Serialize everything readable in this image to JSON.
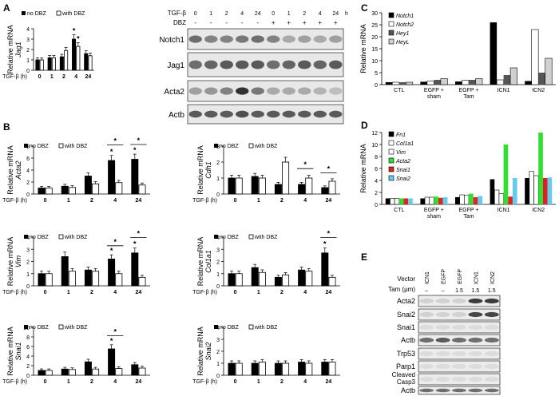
{
  "panels": {
    "A": "A",
    "B": "B",
    "C": "C",
    "D": "D",
    "E": "E"
  },
  "legend": {
    "no_dbz": "no DBZ",
    "with_dbz": "with DBZ"
  },
  "ylabel_prefix": "Relative mRNA",
  "tgf_axis": "TGF-β (h)",
  "tgf_times": [
    "0",
    "1",
    "2",
    "4",
    "24"
  ],
  "colors": {
    "black": "#000000",
    "white": "#ffffff",
    "dark_gray": "#555555",
    "light_gray": "#d0d0d0",
    "green": "#33dd33",
    "red": "#dd2222",
    "cyan": "#66ccee"
  },
  "blotA": {
    "tgf_label": "TGF-β",
    "dbz_label": "DBZ",
    "h_label": "h",
    "times": [
      "0",
      "1",
      "2",
      "4",
      "24",
      "0",
      "1",
      "2",
      "4",
      "24"
    ],
    "dbz": [
      "-",
      "-",
      "-",
      "-",
      "-",
      "+",
      "+",
      "+",
      "+",
      "+"
    ],
    "rows": [
      "Notch1",
      "Jag1",
      "Acta2",
      "Actb"
    ]
  },
  "blotE": {
    "vector_label": "Vector",
    "tam_label": "Tam (μm)",
    "lanes": [
      "ICN1",
      "EGFP",
      "EGFP",
      "ICN1",
      "ICN2"
    ],
    "tam": [
      "–",
      "–",
      "1.5",
      "1.5",
      "1.5"
    ],
    "rows": [
      "Acta2",
      "Snai2",
      "Snai1",
      "Actb",
      "Trp53",
      "Parp1",
      "Cleaved Casp3",
      "Actb"
    ]
  },
  "chart_data": [
    {
      "id": "A-Jag1",
      "type": "bar",
      "gene": "Jag1",
      "categories": [
        "0",
        "1",
        "2",
        "4",
        "24"
      ],
      "ylim": [
        0,
        4
      ],
      "yticks": [
        "0",
        "1",
        "2",
        "3",
        "4"
      ],
      "series": [
        {
          "name": "no DBZ",
          "values": [
            1,
            1.2,
            1.3,
            3.0,
            1.6
          ]
        },
        {
          "name": "with DBZ",
          "values": [
            1,
            1.2,
            1.9,
            2.3,
            1.4
          ]
        }
      ],
      "stars": [
        {
          "cat": "4",
          "series": "no DBZ",
          "text": "*"
        },
        {
          "cat": "4",
          "series": "with DBZ",
          "text": "*"
        }
      ]
    },
    {
      "id": "B-Acta2",
      "type": "bar",
      "gene": "Acta2",
      "categories": [
        "0",
        "1",
        "2",
        "4",
        "24"
      ],
      "ylim": [
        0,
        8
      ],
      "yticks": [
        "0",
        "2",
        "4",
        "6",
        "8"
      ],
      "series": [
        {
          "name": "no DBZ",
          "values": [
            1,
            1.3,
            3.0,
            5.6,
            5.8
          ]
        },
        {
          "name": "with DBZ",
          "values": [
            1,
            1.1,
            1.7,
            1.9,
            1.5
          ]
        }
      ],
      "stars": [
        {
          "cat": "4",
          "text": "*"
        },
        {
          "cat": "24",
          "text": "*"
        }
      ],
      "sigbars": [
        {
          "cat": "4",
          "text": "*"
        },
        {
          "cat": "24",
          "text": "*"
        }
      ]
    },
    {
      "id": "B-Cdh1",
      "type": "bar",
      "gene": "Cdh1",
      "categories": [
        "0",
        "1",
        "2",
        "4",
        "24"
      ],
      "ylim": [
        0,
        3
      ],
      "yticks": [
        "0",
        "1",
        "2",
        "3"
      ],
      "series": [
        {
          "name": "no DBZ",
          "values": [
            1,
            1.1,
            0.6,
            0.6,
            0.4
          ]
        },
        {
          "name": "with DBZ",
          "values": [
            1,
            1.0,
            2.0,
            1.0,
            0.8
          ]
        }
      ],
      "stars": [],
      "sigbars": [
        {
          "cat": "4",
          "text": "*"
        },
        {
          "cat": "24",
          "text": "*"
        }
      ]
    },
    {
      "id": "B-Vim",
      "type": "bar",
      "gene": "Vim",
      "categories": [
        "0",
        "1",
        "2",
        "4",
        "24"
      ],
      "ylim": [
        0,
        4
      ],
      "yticks": [
        "0",
        "1",
        "2",
        "3",
        "4"
      ],
      "series": [
        {
          "name": "no DBZ",
          "values": [
            1,
            2.4,
            1.3,
            2.2,
            2.7
          ]
        },
        {
          "name": "with DBZ",
          "values": [
            1,
            1.2,
            1.2,
            1.0,
            0.7
          ]
        }
      ],
      "stars": [
        {
          "cat": "4",
          "text": "*"
        },
        {
          "cat": "24",
          "text": "*"
        }
      ],
      "sigbars": [
        {
          "cat": "4",
          "text": "*"
        },
        {
          "cat": "24",
          "text": "*"
        }
      ]
    },
    {
      "id": "B-Col1a1",
      "type": "bar",
      "gene": "Col1a1",
      "categories": [
        "0",
        "1",
        "2",
        "4",
        "24"
      ],
      "ylim": [
        0,
        4
      ],
      "yticks": [
        "0",
        "1",
        "2",
        "3",
        "4"
      ],
      "series": [
        {
          "name": "no DBZ",
          "values": [
            1,
            1.5,
            0.7,
            1.3,
            2.7
          ]
        },
        {
          "name": "with DBZ",
          "values": [
            1,
            1.1,
            0.9,
            1.2,
            0.7
          ]
        }
      ],
      "stars": [
        {
          "cat": "24",
          "text": "*"
        }
      ],
      "sigbars": [
        {
          "cat": "24",
          "text": "*"
        }
      ]
    },
    {
      "id": "B-Snai1",
      "type": "bar",
      "gene": "Snai1",
      "categories": [
        "0",
        "1",
        "2",
        "4",
        "24"
      ],
      "ylim": [
        0,
        10
      ],
      "yticks": [
        "0",
        "2",
        "4",
        "6",
        "8",
        "10"
      ],
      "series": [
        {
          "name": "no DBZ",
          "values": [
            1,
            1.3,
            2.8,
            5.5,
            2.2
          ]
        },
        {
          "name": "with DBZ",
          "values": [
            1,
            1.2,
            1.3,
            1.4,
            1.5
          ]
        }
      ],
      "stars": [
        {
          "cat": "4",
          "text": "*"
        }
      ],
      "sigbars": [
        {
          "cat": "4",
          "text": "*"
        }
      ]
    },
    {
      "id": "B-Snai2",
      "type": "bar",
      "gene": "Snai2",
      "categories": [
        "0",
        "1",
        "2",
        "4",
        "24"
      ],
      "ylim": [
        0,
        4
      ],
      "yticks": [
        "0",
        "1",
        "2",
        "3",
        "4"
      ],
      "series": [
        {
          "name": "no DBZ",
          "values": [
            1,
            1.0,
            1.0,
            1.1,
            1.1
          ]
        },
        {
          "name": "with DBZ",
          "values": [
            1,
            1.1,
            1.0,
            1.0,
            1.1
          ]
        }
      ],
      "stars": [],
      "sigbars": []
    },
    {
      "id": "C",
      "type": "bar",
      "categories": [
        "CTL",
        "EGFP + sham",
        "EGFP + Tam",
        "ICN1",
        "ICN2"
      ],
      "ylim": [
        0,
        30
      ],
      "yticks": [
        "0",
        "5",
        "10",
        "15",
        "20",
        "25",
        "30"
      ],
      "series": [
        {
          "name": "Notch1",
          "values": [
            1,
            1.2,
            1.3,
            26,
            1.5
          ]
        },
        {
          "name": "Notch2",
          "values": [
            1,
            1.5,
            1.8,
            2,
            23
          ]
        },
        {
          "name": "Hey1",
          "values": [
            1,
            2,
            2,
            4,
            5
          ]
        },
        {
          "name": "HeyL",
          "values": [
            1,
            2.5,
            2.5,
            7,
            11
          ]
        }
      ]
    },
    {
      "id": "D",
      "type": "bar",
      "categories": [
        "CTL",
        "EGFP + sham",
        "EGFP + Tam",
        "ICN1",
        "ICN2"
      ],
      "ylim": [
        0,
        12
      ],
      "yticks": [
        "0",
        "2",
        "4",
        "6",
        "8",
        "10",
        "12"
      ],
      "series": [
        {
          "name": "Fn1",
          "values": [
            1,
            1,
            1.2,
            4.2,
            4.4
          ]
        },
        {
          "name": "Col1a1",
          "values": [
            1,
            1.2,
            1.6,
            2.4,
            5.5
          ]
        },
        {
          "name": "Vim",
          "values": [
            1,
            1.2,
            1.5,
            1.8,
            4.8
          ]
        },
        {
          "name": "Acta2",
          "values": [
            1,
            1.3,
            1.8,
            10,
            12
          ]
        },
        {
          "name": "Snai1",
          "values": [
            1,
            1.1,
            1.2,
            1.3,
            4.4
          ]
        },
        {
          "name": "Snai2",
          "values": [
            1,
            1.2,
            1.4,
            4.4,
            4.5
          ]
        }
      ]
    }
  ]
}
